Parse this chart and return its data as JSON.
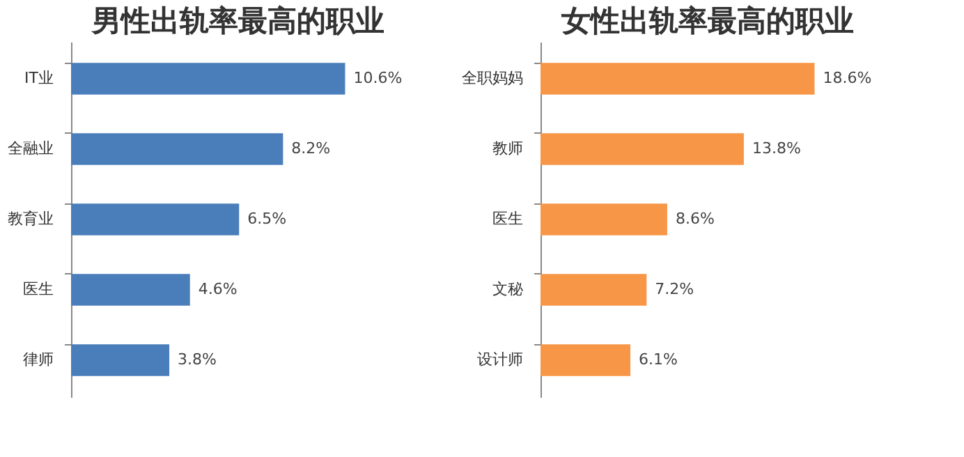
{
  "chart_data": [
    {
      "type": "bar",
      "orientation": "horizontal",
      "title": "男性出轨率最高的职业",
      "categories": [
        "IT业",
        "全融业",
        "教育业",
        "医生",
        "律师"
      ],
      "values": [
        10.6,
        8.2,
        6.5,
        4.6,
        3.8
      ],
      "value_labels": [
        "10.6%",
        "8.2%",
        "6.5%",
        "4.6%",
        "3.8%"
      ],
      "color": "#4a7ebb",
      "grid": false
    },
    {
      "type": "bar",
      "orientation": "horizontal",
      "title": "女性出轨率最高的职业",
      "categories": [
        "全职妈妈",
        "教师",
        "医生",
        "文秘",
        "设计师"
      ],
      "values": [
        18.6,
        13.8,
        8.6,
        7.2,
        6.1
      ],
      "value_labels": [
        "18.6%",
        "13.8%",
        "8.6%",
        "7.2%",
        "6.1%"
      ],
      "color": "#f79646",
      "grid": false
    }
  ]
}
